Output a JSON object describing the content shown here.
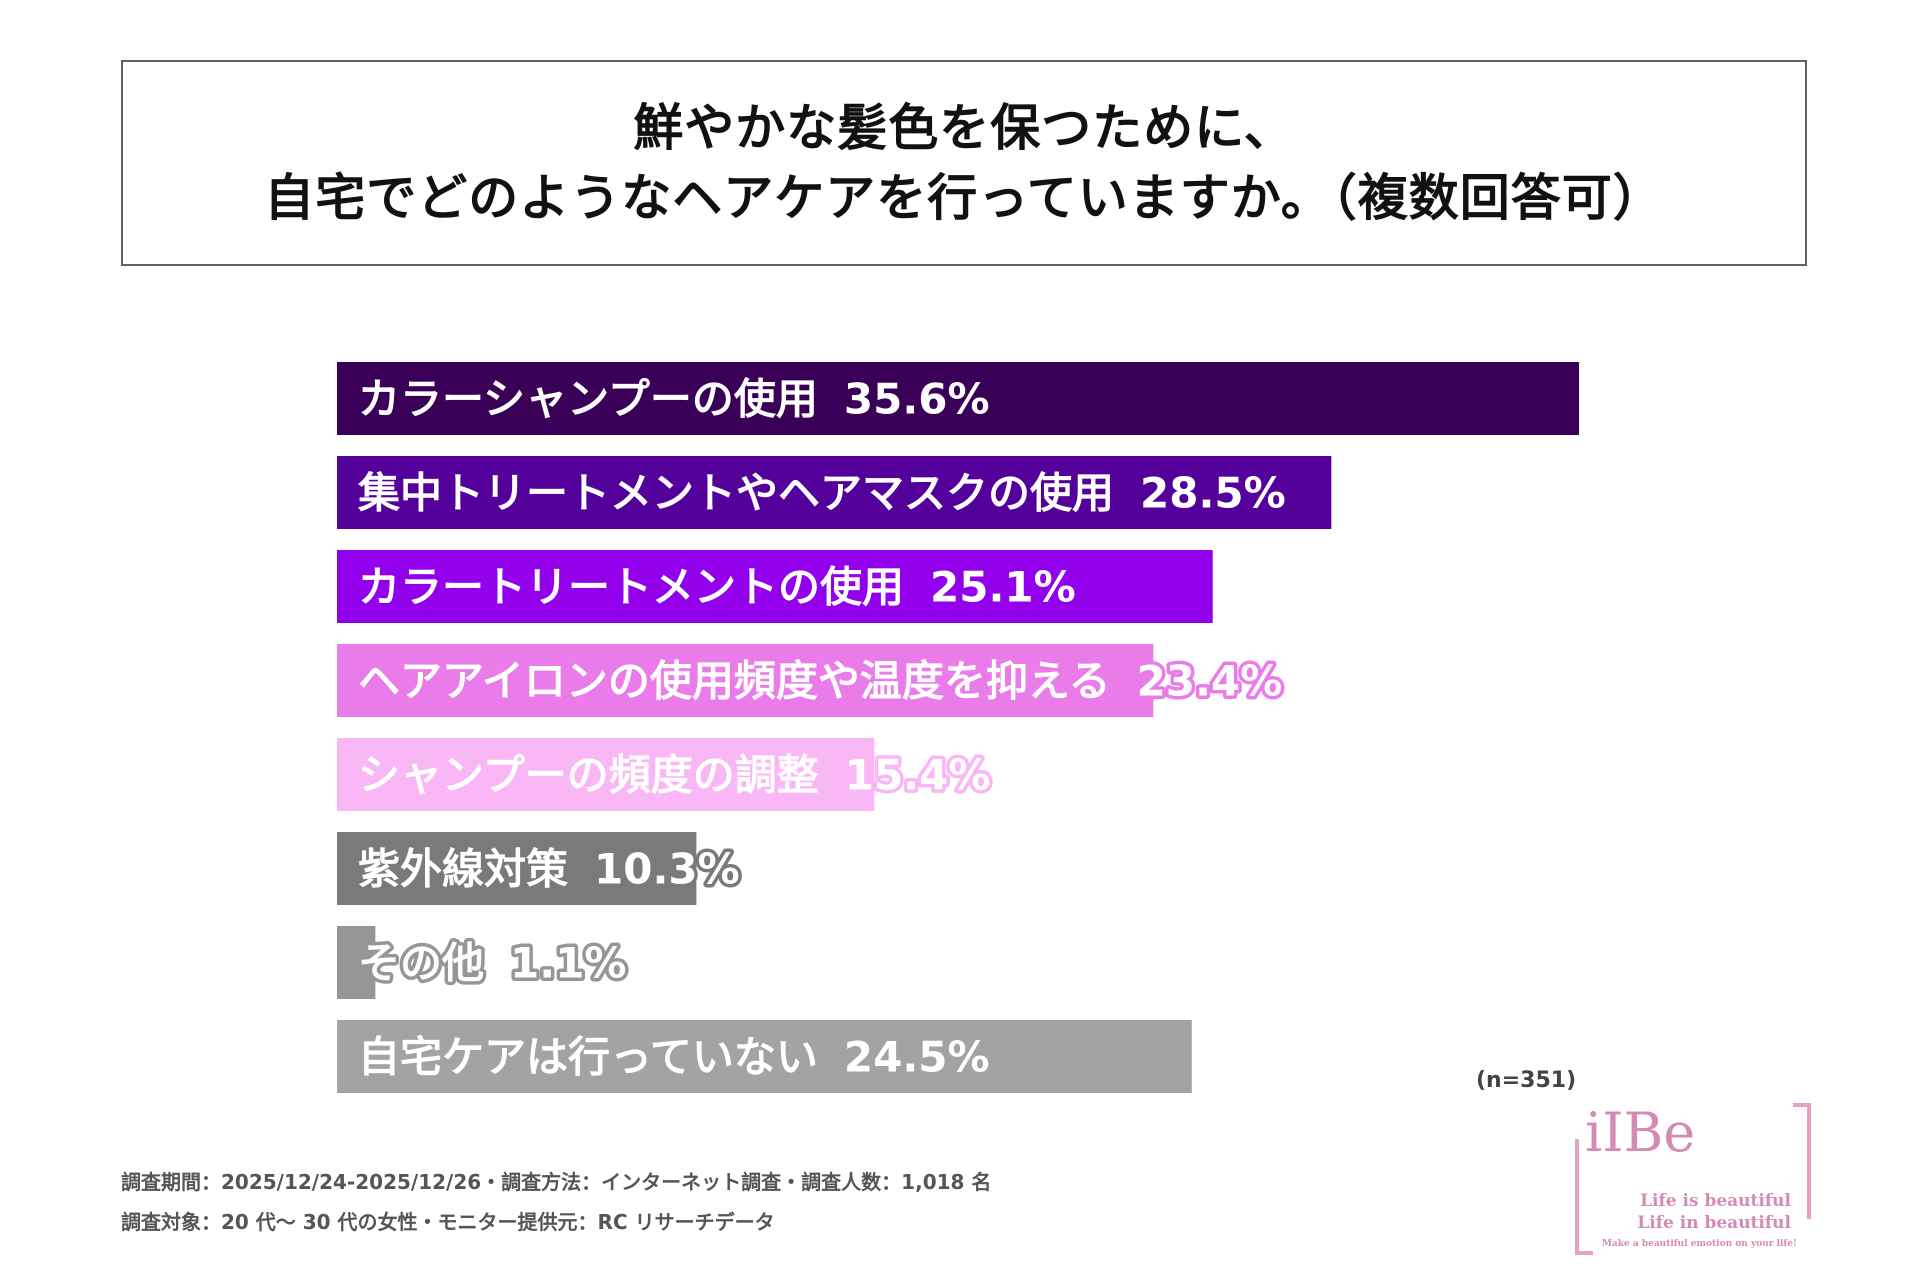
{
  "title": {
    "line1": "鮮やかな髪色を保つために、",
    "line2": "自宅でどのようなヘアケアを行っていますか。（複数回答可）"
  },
  "chart_data": {
    "type": "bar",
    "orientation": "horizontal",
    "categories": [
      "カラーシャンプーの使用",
      "集中トリートメントやヘアマスクの使用",
      "カラートリートメントの使用",
      "ヘアアイロンの使用頻度や温度を抑える",
      "シャンプーの頻度の調整",
      "紫外線対策",
      "その他",
      "自宅ケアは行っていない"
    ],
    "values": [
      35.6,
      28.5,
      25.1,
      23.4,
      15.4,
      10.3,
      1.1,
      24.5
    ],
    "value_labels": [
      "35.6%",
      "28.5%",
      "25.1%",
      "23.4%",
      "15.4%",
      "10.3%",
      "1.1%",
      "24.5%"
    ],
    "colors": [
      "#3a0058",
      "#54009a",
      "#9200ec",
      "#ea7cea",
      "#f9b7f6",
      "#7a7a7a",
      "#969696",
      "#a3a3a3"
    ],
    "xlim": [
      0,
      36
    ],
    "grid": false
  },
  "sample_size": "(n=351)",
  "footnotes": {
    "line1": "調査期間：2025/12/24-2025/12/26・調査方法：インターネット調査・調査人数：1,018 名",
    "line2": "調査対象：20 代～ 30 代の女性・モニター提供元：RC リサーチデータ"
  },
  "logo": {
    "name": "iIBe",
    "tagline1": "Life is beautiful",
    "tagline2": "Life in beautiful",
    "tagline3": "Make a beautiful emotion on your life!"
  }
}
